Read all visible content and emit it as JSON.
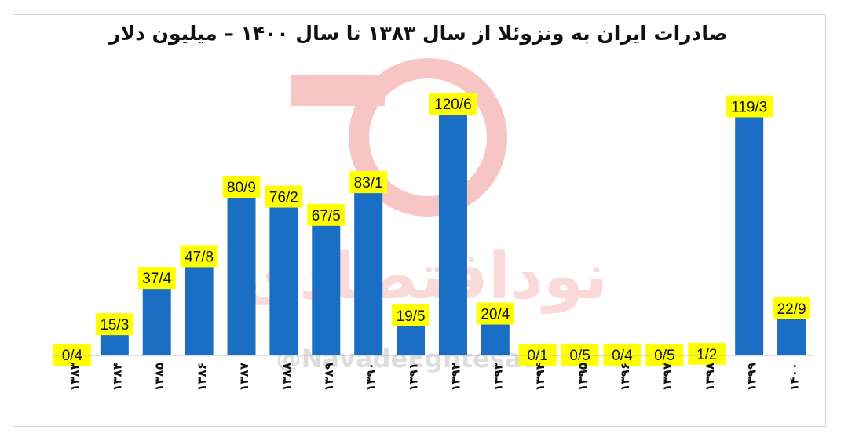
{
  "chart_data": {
    "type": "bar",
    "title": "صادرات ایران به ونزوئلا از سال ۱۳۸۳ تا سال ۱۴۰۰ – میلیون دلار",
    "categories": [
      "۱۳۸۳",
      "۱۳۸۴",
      "۱۳۸۵",
      "۱۳۸۶",
      "۱۳۸۷",
      "۱۳۸۸",
      "۱۳۸۹",
      "۱۳۹۰",
      "۱۳۹۱",
      "۱۳۹۲",
      "۱۳۹۳",
      "۱۳۹۴",
      "۱۳۹۵",
      "۱۳۹۶",
      "۱۳۹۷",
      "۱۳۹۸",
      "۱۳۹۹",
      "۱۴۰۰"
    ],
    "values": [
      0.4,
      15.3,
      37.4,
      47.8,
      80.9,
      76.2,
      67.5,
      83.1,
      19.5,
      120.6,
      20.4,
      0.1,
      0.5,
      0.4,
      0.5,
      1.2,
      119.3,
      22.9
    ],
    "data_labels": [
      "0/4",
      "15/3",
      "37/4",
      "47/8",
      "80/9",
      "76/2",
      "67/5",
      "83/1",
      "19/5",
      "120/6",
      "20/4",
      "0/1",
      "0/5",
      "0/4",
      "0/5",
      "1/2",
      "119/3",
      "22/9"
    ],
    "ylim": [
      0,
      120.6
    ],
    "grid": false,
    "colors": {
      "bar": "#1a6fc4",
      "label_bg": "#ffff00",
      "watermark": "#f5b5b5"
    }
  },
  "watermark": {
    "logo_text": "نوداقتصادی",
    "handle": "@NavadeEghtesadi"
  }
}
